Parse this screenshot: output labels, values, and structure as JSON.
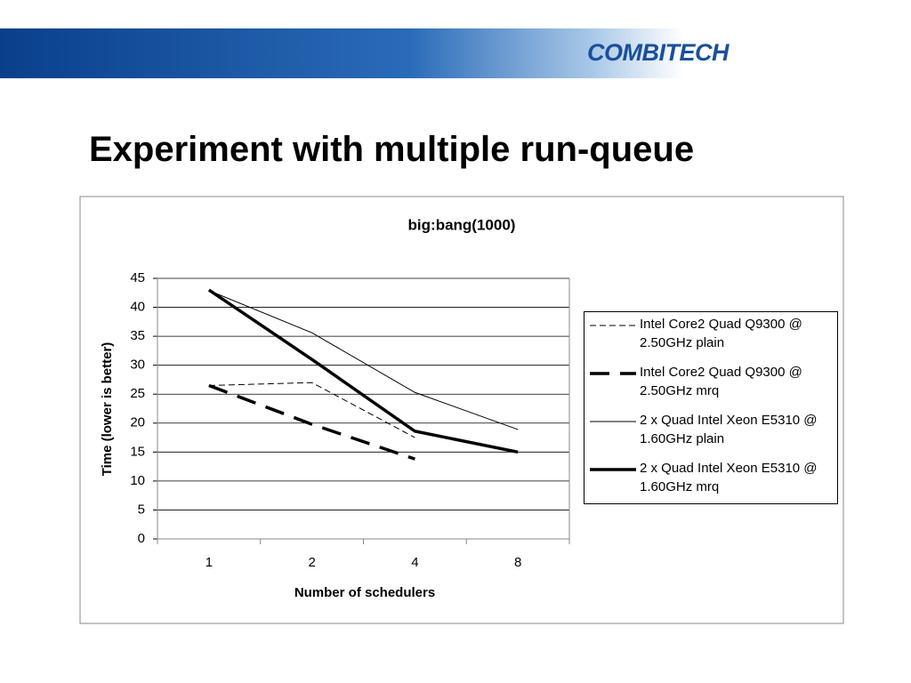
{
  "logo": "COMBITECH",
  "slide_title": "Experiment with multiple run-queue",
  "chart_data": {
    "type": "line",
    "title": "big:bang(1000)",
    "x_label": "Number of schedulers",
    "y_label": "Time (lower is better)",
    "categories": [
      "1",
      "2",
      "4",
      "8"
    ],
    "ylim": [
      0,
      45
    ],
    "yticks": [
      0,
      5,
      10,
      15,
      20,
      25,
      30,
      35,
      40,
      45
    ],
    "grid": true,
    "series": [
      {
        "name": "Intel Core2 Quad  Q9300 @ 2.50GHz plain",
        "color": "#000000",
        "line_style": "dashed",
        "line_width": 1,
        "values": [
          26.5,
          27,
          17.5,
          null
        ]
      },
      {
        "name": "Intel Core2 Quad  Q9300 @ 2.50GHz mrq",
        "color": "#000000",
        "line_style": "dashed",
        "line_width": 3.5,
        "values": [
          26.5,
          19.8,
          13.8,
          null
        ]
      },
      {
        "name": "2 x Quad Intel Xeon E5310  @ 1.60GHz plain",
        "color": "#000000",
        "line_style": "solid",
        "line_width": 1,
        "values": [
          42.9,
          35.6,
          25.3,
          18.9
        ]
      },
      {
        "name": "2 x Quad Intel Xeon E5310  @ 1.60GHz mrq",
        "color": "#000000",
        "line_style": "solid",
        "line_width": 3.5,
        "values": [
          43,
          31,
          18.6,
          15
        ]
      }
    ]
  }
}
